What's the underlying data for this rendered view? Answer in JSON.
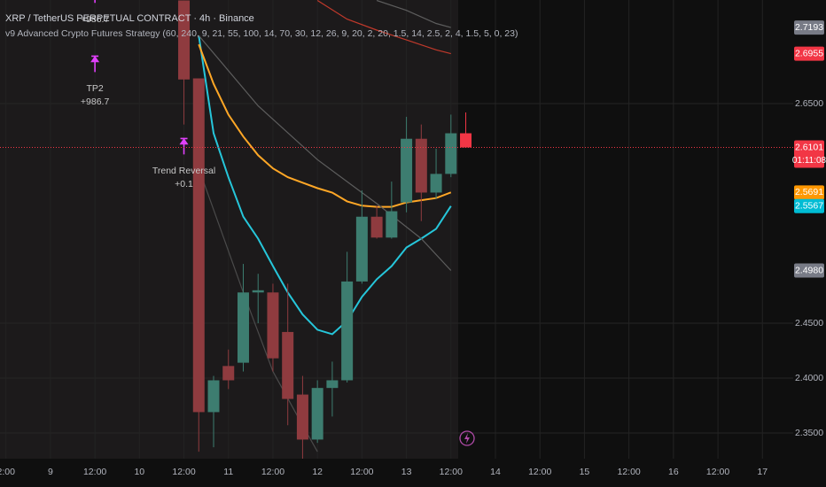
{
  "chart_data": {
    "type": "candlestick",
    "title": "XRP / TetherUS PERPETUAL CONTRACT · 4h · Binance",
    "subtitle": "v9 Advanced Crypto Futures Strategy (60, 240, 9, 21, 55, 100, 14, 70, 30, 12, 26, 9, 20, 2, 20, 1.5, 14, 2.5, 2, 4, 1.5, 5, 0, 23)",
    "x": [
      36,
      40,
      44,
      48,
      52,
      56,
      60,
      64,
      68,
      72,
      76,
      80,
      84,
      88,
      92,
      96,
      100,
      104,
      108,
      112
    ],
    "open": [
      2.744,
      2.673,
      2.369,
      2.411,
      2.414,
      2.478,
      2.478,
      2.442,
      2.385,
      2.344,
      2.391,
      2.398,
      2.488,
      2.547,
      2.528,
      2.56,
      2.618,
      2.569,
      2.586,
      2.623
    ],
    "high": [
      2.744,
      2.673,
      2.402,
      2.426,
      2.504,
      2.495,
      2.486,
      2.486,
      2.402,
      2.398,
      2.415,
      2.515,
      2.571,
      2.557,
      2.579,
      2.638,
      2.631,
      2.609,
      2.64,
      2.642
    ],
    "low": [
      2.631,
      2.333,
      2.337,
      2.39,
      2.406,
      2.45,
      2.406,
      2.357,
      2.325,
      2.341,
      2.365,
      2.396,
      2.486,
      2.527,
      2.527,
      2.551,
      2.543,
      2.563,
      2.583,
      2.6101
    ],
    "close": [
      2.672,
      2.369,
      2.398,
      2.398,
      2.478,
      2.48,
      2.418,
      2.381,
      2.344,
      2.391,
      2.398,
      2.488,
      2.547,
      2.528,
      2.552,
      2.618,
      2.569,
      2.586,
      2.623,
      2.6101
    ],
    "up_color": "#3d7d70",
    "down_color": "#8f3b3f",
    "live_color": "#f23645",
    "lines": [
      {
        "color": "#26c6da",
        "x": [
          40,
          44,
          48,
          52,
          56,
          60,
          64,
          68,
          72,
          76,
          80,
          84,
          88,
          92,
          96,
          100,
          104,
          108
        ],
        "values": [
          2.712,
          2.623,
          2.583,
          2.547,
          2.527,
          2.502,
          2.478,
          2.458,
          2.444,
          2.44,
          2.452,
          2.474,
          2.49,
          2.502,
          2.519,
          2.527,
          2.536,
          2.5567
        ]
      },
      {
        "color": "#ffa726",
        "x": [
          40,
          44,
          48,
          52,
          56,
          60,
          64,
          68,
          72,
          76,
          80,
          84,
          88,
          92,
          96,
          100,
          104,
          108
        ],
        "values": [
          2.704,
          2.668,
          2.64,
          2.62,
          2.603,
          2.591,
          2.583,
          2.578,
          2.573,
          2.569,
          2.561,
          2.557,
          2.556,
          2.556,
          2.56,
          2.562,
          2.564,
          2.5691
        ]
      },
      {
        "color": "#c0392b",
        "x": [
          72,
          80,
          88,
          96,
          104,
          108
        ],
        "values": [
          2.744,
          2.727,
          2.717,
          2.708,
          2.699,
          2.6955
        ]
      },
      {
        "color": "#5d5d5d",
        "x": [
          88,
          96,
          104,
          108
        ],
        "values": [
          2.744,
          2.735,
          2.723,
          2.7193
        ]
      },
      {
        "color": "#5d5d5d",
        "x": [
          40,
          56,
          72,
          88,
          100,
          108
        ],
        "values": [
          2.712,
          2.648,
          2.599,
          2.559,
          2.527,
          2.498
        ]
      },
      {
        "color": "#4a4a4a",
        "x": [
          40,
          52,
          60,
          68,
          72
        ],
        "values": [
          2.591,
          2.478,
          2.406,
          2.357,
          2.333
        ]
      }
    ],
    "annotation_color": "#e040fb",
    "annotations": [
      {
        "x": 12,
        "price": 2.749,
        "texts": [
          "+986.7"
        ]
      },
      {
        "x": 12,
        "price": 2.686,
        "texts": [
          "TP2",
          "+986.7"
        ]
      },
      {
        "x": 36,
        "price": 2.611,
        "texts": [
          "Trend Reversal",
          "+0.1"
        ]
      }
    ],
    "price_tags": [
      {
        "value": 2.7193,
        "label": "2.7193",
        "color": "#787b86"
      },
      {
        "value": 2.6955,
        "label": "2.6955",
        "color": "#f23645"
      },
      {
        "value": 2.6101,
        "label": "2.6101",
        "color": "#f23645"
      },
      {
        "value": 2.5691,
        "label": "2.5691",
        "color": "#ff9800"
      },
      {
        "value": 2.5567,
        "label": "2.5567",
        "color": "#00bcd4"
      },
      {
        "value": 2.498,
        "label": "2.4980",
        "color": "#787b86"
      }
    ],
    "countdown": "01:11:08",
    "xlim": [
      -13.6,
      200.3
    ],
    "ylim": [
      2.3266,
      2.7444
    ],
    "xticks": [
      {
        "value": -12,
        "label": "2:00"
      },
      0,
      {
        "value": 12,
        "label": "12:00"
      },
      {
        "value": 24,
        "label": "10"
      },
      {
        "value": 36,
        "label": "12:00"
      },
      {
        "value": 48,
        "label": "11"
      },
      {
        "value": 60,
        "label": "12:00"
      },
      {
        "value": 72,
        "label": "12"
      },
      {
        "value": 84,
        "label": "12:00"
      },
      {
        "value": 96,
        "label": "13"
      },
      {
        "value": 108,
        "label": "12:00"
      },
      {
        "value": 120,
        "label": "14"
      },
      {
        "value": 132,
        "label": "12:00"
      },
      {
        "value": 144,
        "label": "15"
      },
      {
        "value": 156,
        "label": "12:00"
      },
      {
        "value": 168,
        "label": "16"
      },
      {
        "value": 180,
        "label": "12:00"
      },
      {
        "value": 192,
        "label": "17"
      }
    ],
    "xtick0_label": "9",
    "yticks": [
      {
        "value": 2.65,
        "label": "2.6500"
      },
      {
        "value": 2.45,
        "label": "2.4500"
      },
      {
        "value": 2.4,
        "label": "2.4000"
      },
      {
        "value": 2.35,
        "label": "2.3500"
      }
    ],
    "grid": true
  }
}
